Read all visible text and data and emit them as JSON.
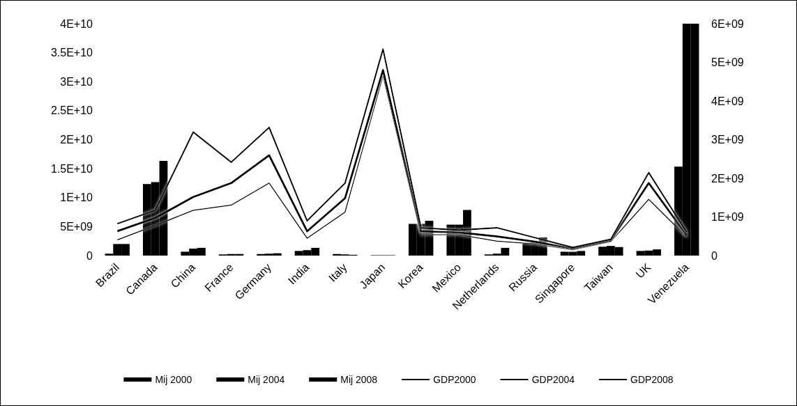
{
  "chart_data": {
    "type": "bar",
    "categories": [
      "Brazil",
      "Canada",
      "China",
      "France",
      "Germany",
      "India",
      "Italy",
      "Japan",
      "Korea",
      "Mexico",
      "Netherlands",
      "Russia",
      "Singapore",
      "Taiwan",
      "UK",
      "Venezuela"
    ],
    "series": [
      {
        "name": "Mij 2000",
        "color": "#000000",
        "axis": "y2",
        "values": [
          50000000.0,
          1850000000.0,
          100000000.0,
          30000000.0,
          40000000.0,
          120000000.0,
          40000000.0,
          10000000.0,
          820000000.0,
          800000000.0,
          30000000.0,
          330000000.0,
          100000000.0,
          230000000.0,
          120000000.0,
          2300000000.0
        ]
      },
      {
        "name": "Mij 2004",
        "color": "#000000",
        "axis": "y2",
        "values": [
          300000000.0,
          1900000000.0,
          180000000.0,
          40000000.0,
          50000000.0,
          140000000.0,
          30000000.0,
          10000000.0,
          820000000.0,
          800000000.0,
          50000000.0,
          360000000.0,
          100000000.0,
          250000000.0,
          130000000.0,
          6000000000.0
        ]
      },
      {
        "name": "Mij 2008",
        "color": "#000000",
        "axis": "y2",
        "values": [
          300000000.0,
          2450000000.0,
          200000000.0,
          40000000.0,
          60000000.0,
          200000000.0,
          20000000.0,
          10000000.0,
          900000000.0,
          1180000000.0,
          200000000.0,
          470000000.0,
          120000000.0,
          220000000.0,
          160000000.0,
          6000000000.0
        ]
      },
      {
        "name": "GDP2000",
        "type": "line",
        "color": "#000000",
        "values": [
          2700000000.0,
          5200000000.0,
          7800000000.0,
          8700000000.0,
          12500000000.0,
          3000000000.0,
          7500000000.0,
          31000000000.0,
          3600000000.0,
          3600000000.0,
          2500000000.0,
          2000000000.0,
          1000000000.0,
          2400000000.0,
          9700000000.0,
          3200000000.0
        ]
      },
      {
        "name": "GDP2004",
        "type": "line",
        "color": "#000000",
        "values": [
          4200000000.0,
          6500000000.0,
          10100000000.0,
          12500000000.0,
          17300000000.0,
          4200000000.0,
          9900000000.0,
          32000000000.0,
          4200000000.0,
          4000000000.0,
          3300000000.0,
          2400000000.0,
          1200000000.0,
          2600000000.0,
          12500000000.0,
          3500000000.0
        ]
      },
      {
        "name": "GDP2008",
        "type": "line",
        "color": "#000000",
        "values": [
          5500000000.0,
          7800000000.0,
          21300000000.0,
          16100000000.0,
          22100000000.0,
          6000000000.0,
          12500000000.0,
          35600000000.0,
          4800000000.0,
          4400000000.0,
          4800000000.0,
          3100000000.0,
          1400000000.0,
          2800000000.0,
          14300000000.0,
          4000000000.0
        ]
      }
    ],
    "ylim": [
      0,
      40000000000.0
    ],
    "yticks": [
      0,
      {
        "value": 5000000000.0,
        "label": "5E+09"
      },
      {
        "value": 10000000000.0,
        "label": "1E+10"
      },
      {
        "value": 15000000000.0,
        "label": "1.5E+10"
      },
      {
        "value": 20000000000.0,
        "label": "2E+10"
      },
      {
        "value": 25000000000.0,
        "label": "2.5E+10"
      },
      {
        "value": 30000000000.0,
        "label": "3E+10"
      },
      {
        "value": 35000000000.0,
        "label": "3.5E+10"
      },
      {
        "value": 40000000000.0,
        "label": "4E+10"
      }
    ],
    "y2lim": [
      0,
      6000000000.0
    ],
    "y2ticks": [
      0,
      {
        "value": 1000000000.0,
        "label": "1E+09"
      },
      {
        "value": 2000000000.0,
        "label": "2E+09"
      },
      {
        "value": 3000000000.0,
        "label": "3E+09"
      },
      {
        "value": 4000000000.0,
        "label": "4E+09"
      },
      {
        "value": 5000000000.0,
        "label": "5E+09"
      },
      {
        "value": 6000000000.0,
        "label": "6E+09"
      }
    ],
    "legend": "bottom",
    "marker": "none"
  }
}
